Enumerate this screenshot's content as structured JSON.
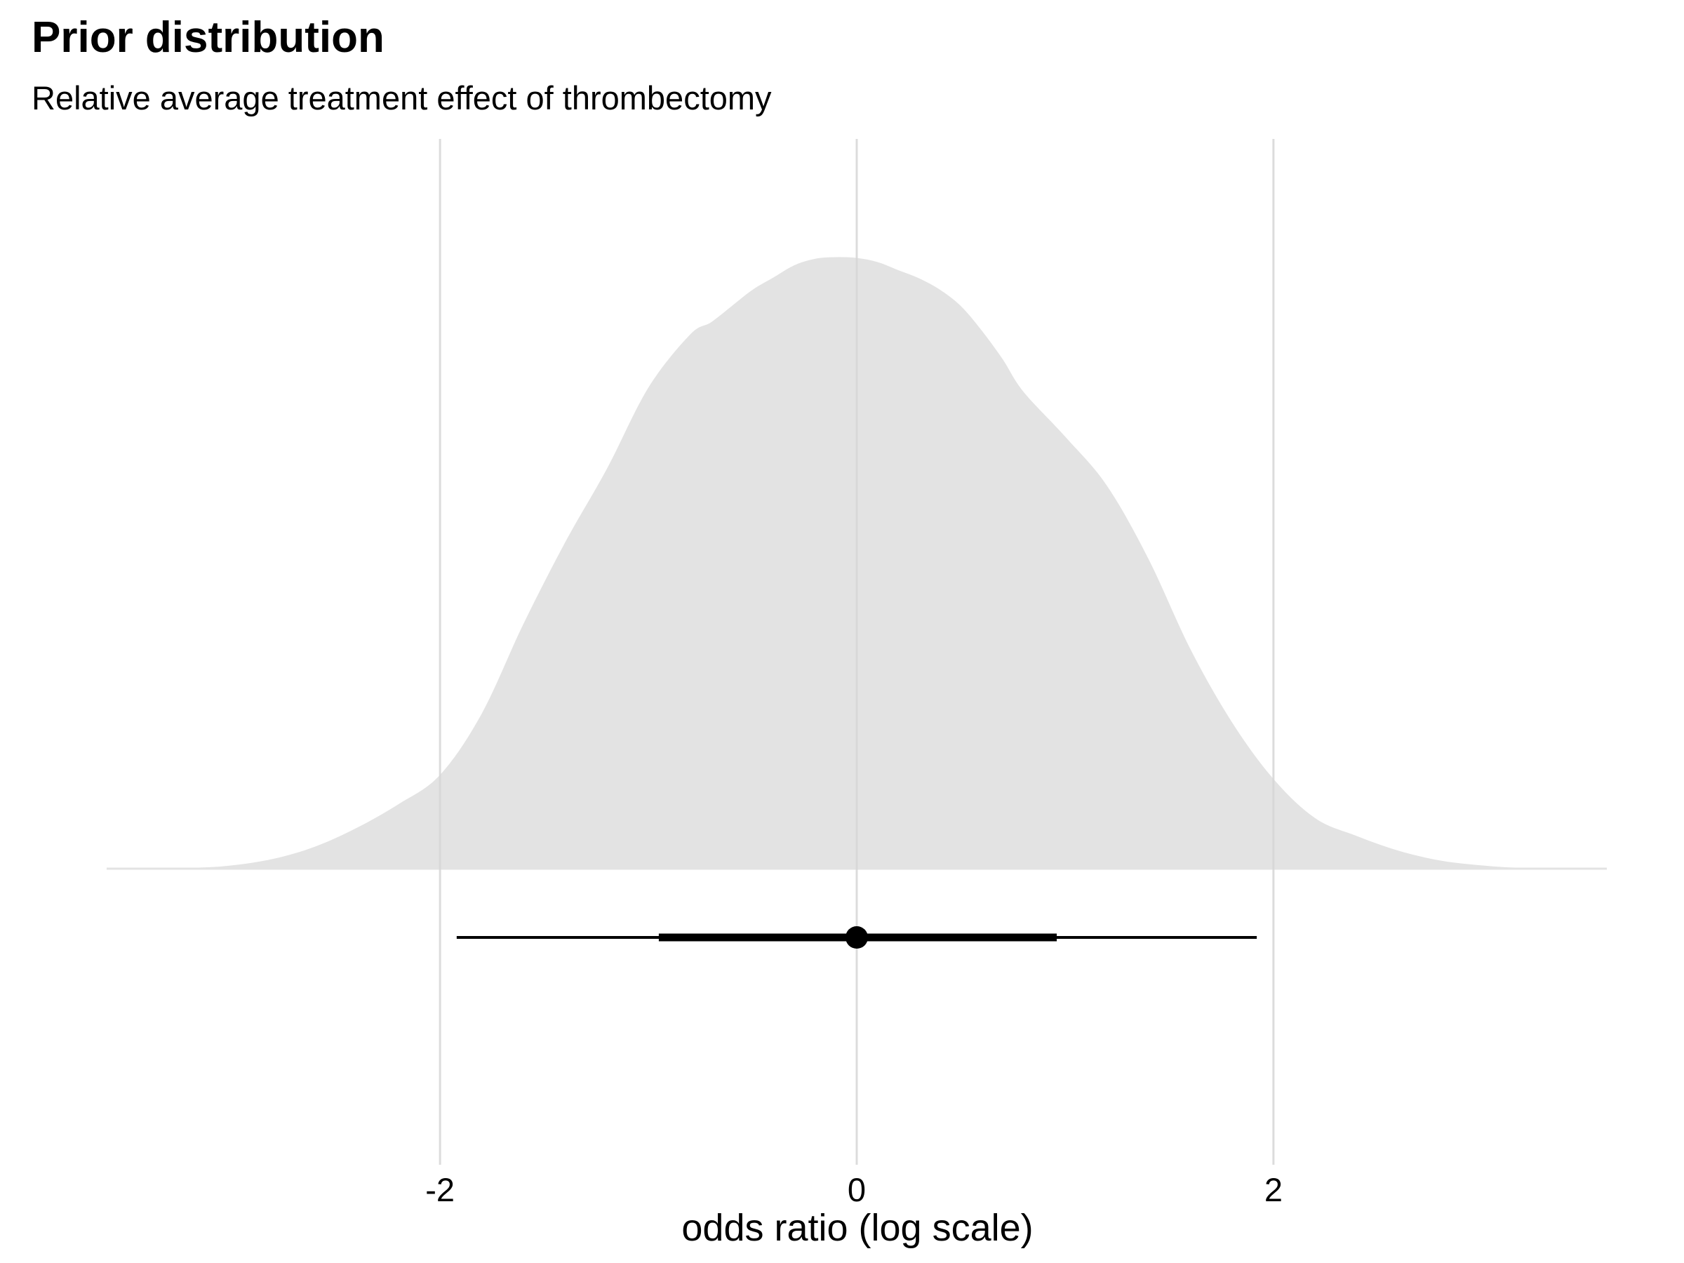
{
  "chart_data": {
    "type": "area",
    "title": "Prior distribution",
    "subtitle": "Relative average treatment effect of thrombectomy",
    "xlabel": "odds ratio (log scale)",
    "ylabel": "",
    "xlim": [
      -3.6,
      3.6
    ],
    "x_ticks": [
      -2,
      0,
      2
    ],
    "x_tick_labels": [
      "-2",
      "0",
      "2"
    ],
    "grid": "vertical major gridlines",
    "legend": "none",
    "density": {
      "x": [
        -3.6,
        -3.2,
        -3.0,
        -2.8,
        -2.6,
        -2.4,
        -2.2,
        -2.0,
        -1.8,
        -1.6,
        -1.4,
        -1.2,
        -1.0,
        -0.8,
        -0.7,
        -0.6,
        -0.5,
        -0.4,
        -0.3,
        -0.2,
        -0.1,
        0.0,
        0.1,
        0.2,
        0.3,
        0.4,
        0.5,
        0.6,
        0.7,
        0.8,
        1.0,
        1.2,
        1.4,
        1.6,
        1.8,
        2.0,
        2.2,
        2.4,
        2.6,
        2.8,
        3.0,
        3.2,
        3.6
      ],
      "y": [
        0.0,
        0.001,
        0.004,
        0.012,
        0.027,
        0.05,
        0.079,
        0.115,
        0.19,
        0.3,
        0.4,
        0.49,
        0.59,
        0.655,
        0.67,
        0.69,
        0.71,
        0.725,
        0.74,
        0.748,
        0.75,
        0.749,
        0.744,
        0.734,
        0.724,
        0.71,
        0.69,
        0.66,
        0.625,
        0.585,
        0.53,
        0.47,
        0.38,
        0.27,
        0.18,
        0.11,
        0.062,
        0.04,
        0.022,
        0.01,
        0.004,
        0.001,
        0.0
      ]
    },
    "point_interval": {
      "point": 0.0,
      "inner_interval": [
        -0.95,
        0.96
      ],
      "outer_interval": [
        -1.92,
        1.92
      ]
    },
    "colors": {
      "density_fill": "#e3e3e3",
      "grid": "#d6d6d6",
      "interval": "#000000"
    }
  }
}
